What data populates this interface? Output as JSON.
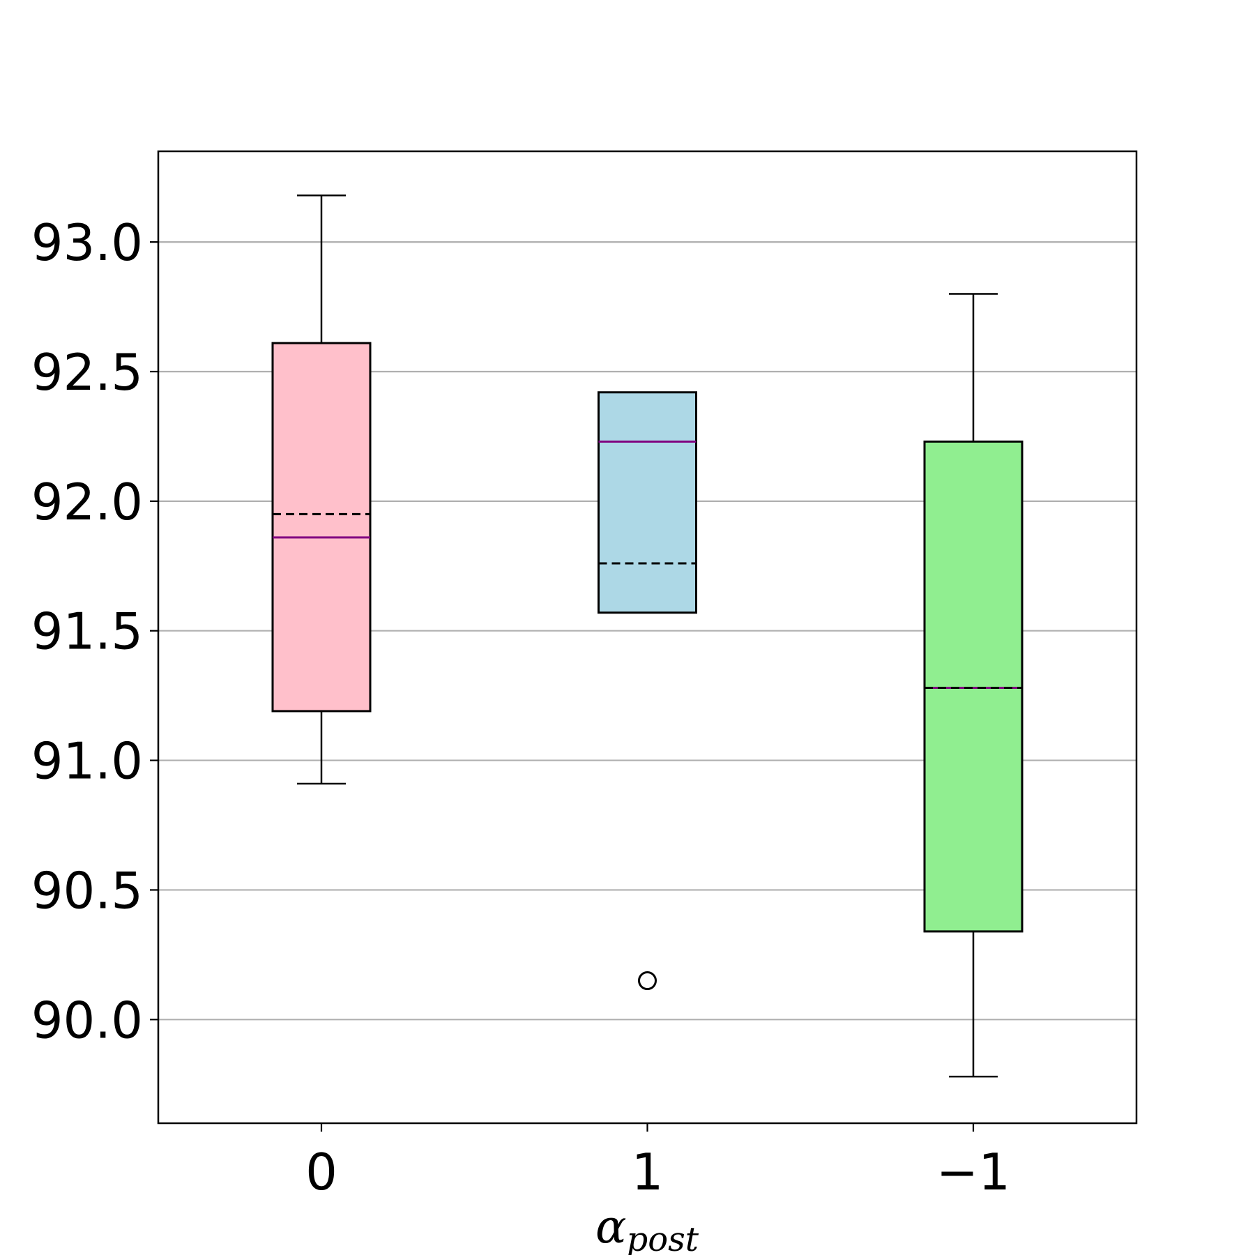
{
  "chart_data": {
    "type": "box",
    "xlabel": {
      "base": "α",
      "sub": "post"
    },
    "ylabel": "",
    "categories": [
      "0",
      "1",
      "−1"
    ],
    "ylim": [
      89.6,
      93.35
    ],
    "yticks": [
      "90.0",
      "90.5",
      "91.0",
      "91.5",
      "92.0",
      "92.5",
      "93.0"
    ],
    "ytick_values": [
      90.0,
      90.5,
      91.0,
      91.5,
      92.0,
      92.5,
      93.0
    ],
    "grid": "y",
    "boxes": [
      {
        "category": "0",
        "color": "#ffc0cb",
        "whisker_low": 90.91,
        "q1": 91.19,
        "median": 91.86,
        "mean": 91.95,
        "q3": 92.61,
        "whisker_high": 93.18,
        "outliers": []
      },
      {
        "category": "1",
        "color": "#add8e6",
        "whisker_low": 91.57,
        "q1": 91.57,
        "median": 92.23,
        "mean": 91.76,
        "q3": 92.42,
        "whisker_high": 92.42,
        "outliers": [
          90.15
        ]
      },
      {
        "category": "−1",
        "color": "#90ee90",
        "whisker_low": 89.78,
        "q1": 90.34,
        "median": 91.28,
        "mean": 91.28,
        "q3": 92.23,
        "whisker_high": 92.8,
        "outliers": []
      }
    ],
    "median_color": "#800080",
    "mean_style": "dashed"
  }
}
